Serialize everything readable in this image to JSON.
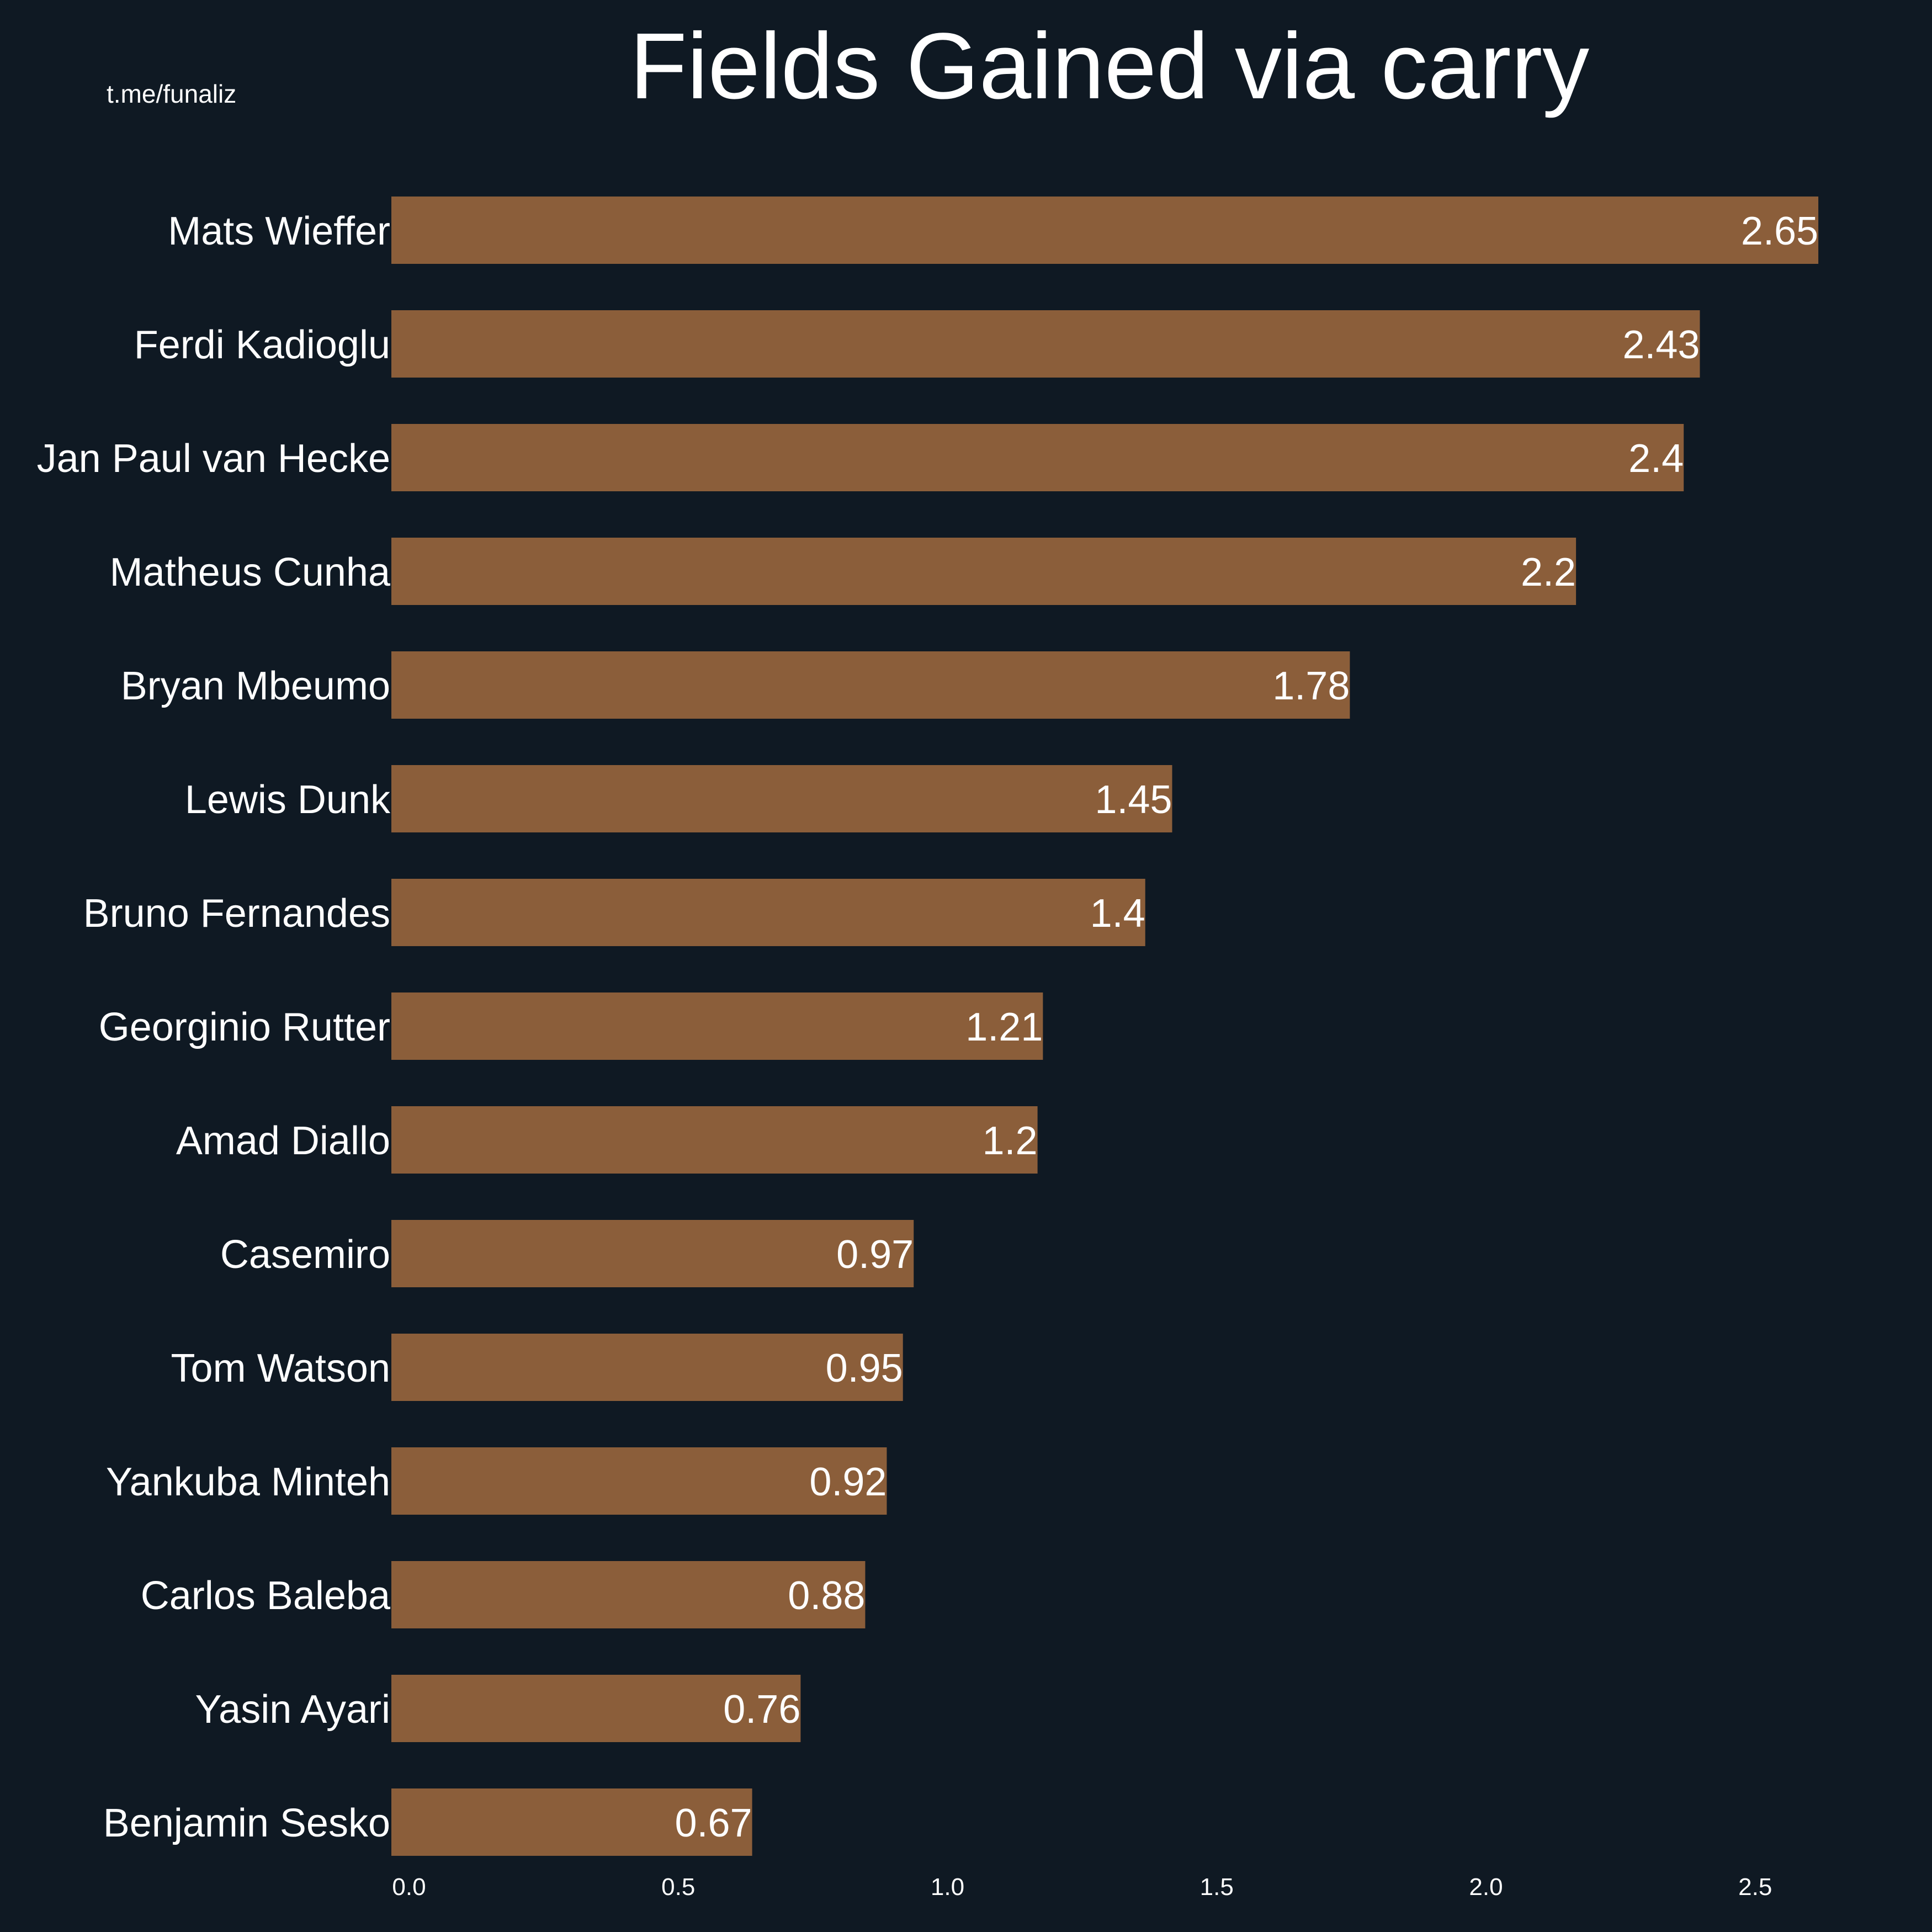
{
  "watermark": "t.me/funaliz",
  "colors": {
    "background": "#0f1923",
    "bar": "#8b5e3a",
    "text": "#ffffff"
  },
  "chart_data": {
    "type": "bar",
    "orientation": "horizontal",
    "title": "Fields Gained via carry",
    "xlabel": "",
    "ylabel": "",
    "grid": false,
    "legend": false,
    "xlim": [
      0,
      2.65
    ],
    "x_ticks": [
      "0.0",
      "0.5",
      "1.0",
      "1.5",
      "2.0",
      "2.5"
    ],
    "categories": [
      "Mats Wieffer",
      "Ferdi Kadioglu",
      "Jan Paul van Hecke",
      "Matheus Cunha",
      "Bryan Mbeumo",
      "Lewis Dunk",
      "Bruno Fernandes",
      "Georginio Rutter",
      "Amad Diallo",
      "Casemiro",
      "Tom Watson",
      "Yankuba Minteh",
      "Carlos Baleba",
      "Yasin Ayari",
      "Benjamin Sesko"
    ],
    "values": [
      2.65,
      2.43,
      2.4,
      2.2,
      1.78,
      1.45,
      1.4,
      1.21,
      1.2,
      0.97,
      0.95,
      0.92,
      0.88,
      0.76,
      0.67
    ],
    "value_labels": [
      "2.65",
      "2.43",
      "2.4",
      "2.2",
      "1.78",
      "1.45",
      "1.4",
      "1.21",
      "1.2",
      "0.97",
      "0.95",
      "0.92",
      "0.88",
      "0.76",
      "0.67"
    ]
  }
}
